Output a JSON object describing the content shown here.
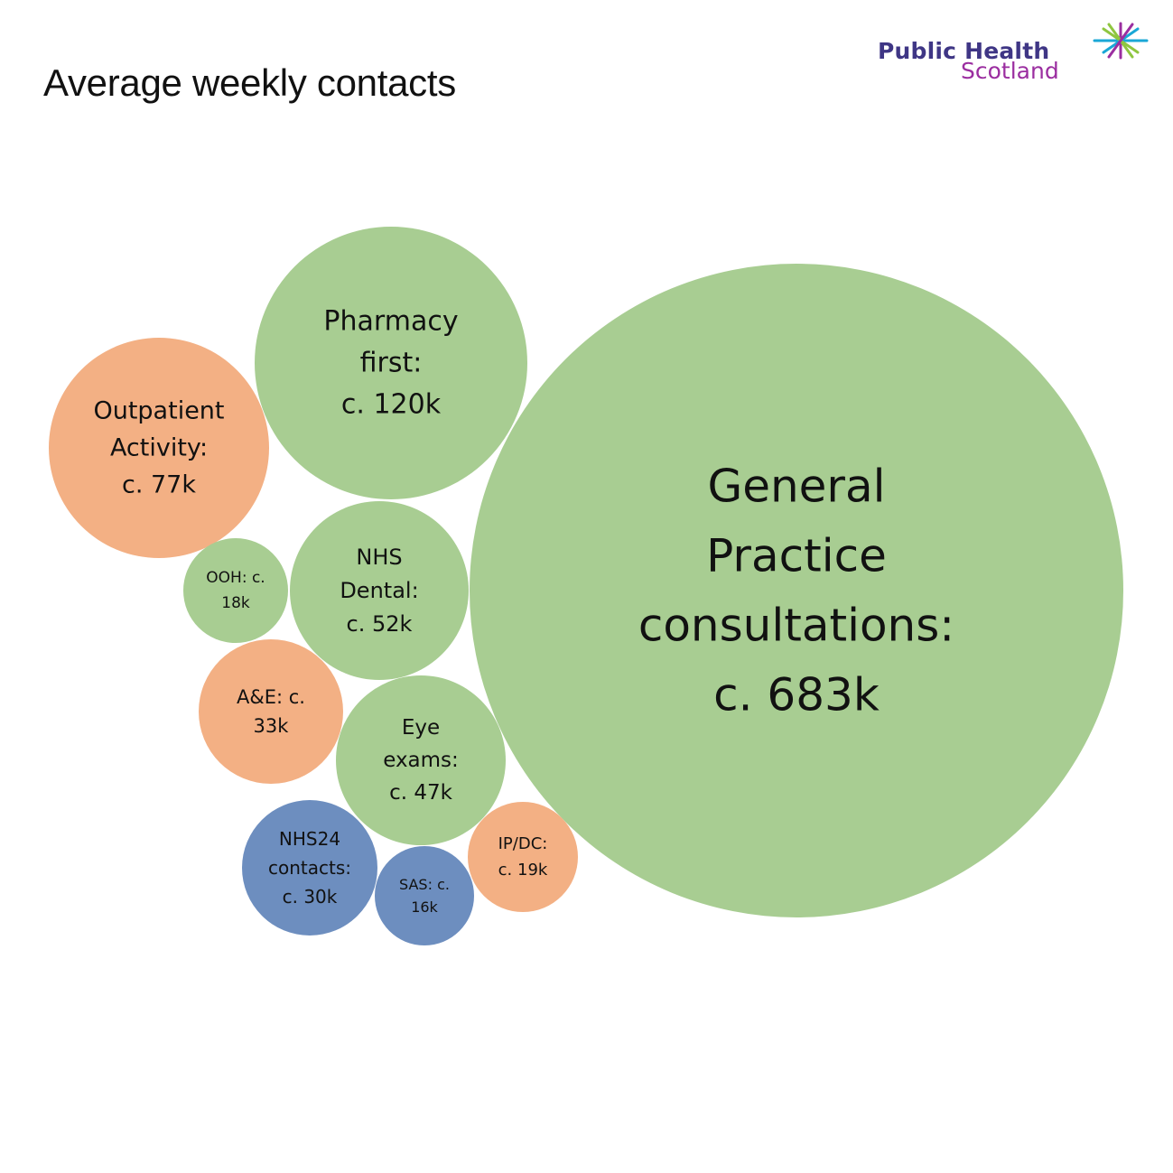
{
  "title": "Average weekly contacts",
  "logo": {
    "line1": "Public Health",
    "line2": "Scotland",
    "colors": {
      "text": "#3f3685",
      "sub": "#9b2ea0",
      "star_a": "#1aa7d6",
      "star_b": "#8fc640",
      "star_c": "#9b2ea0"
    }
  },
  "colors": {
    "green": "#a8cd92",
    "orange": "#f3b084",
    "blue": "#6d8ebf"
  },
  "chart_data": {
    "type": "bubble",
    "title": "Average weekly contacts",
    "bubbles": [
      {
        "name": "General Practice consultations",
        "lines": [
          "General",
          "Practice",
          "consultations:",
          "c. 683k"
        ],
        "value": 683000,
        "group": "green"
      },
      {
        "name": "Pharmacy first",
        "lines": [
          "Pharmacy",
          "first:",
          "c. 120k"
        ],
        "value": 120000,
        "group": "green"
      },
      {
        "name": "Outpatient Activity",
        "lines": [
          "Outpatient",
          "Activity:",
          "c. 77k"
        ],
        "value": 77000,
        "group": "orange"
      },
      {
        "name": "NHS Dental",
        "lines": [
          "NHS",
          "Dental:",
          "c. 52k"
        ],
        "value": 52000,
        "group": "green"
      },
      {
        "name": "Eye exams",
        "lines": [
          "Eye",
          "exams:",
          "c. 47k"
        ],
        "value": 47000,
        "group": "green"
      },
      {
        "name": "A&E",
        "lines": [
          "A&E: c.",
          "33k"
        ],
        "value": 33000,
        "group": "orange"
      },
      {
        "name": "NHS24 contacts",
        "lines": [
          "NHS24",
          "contacts:",
          "c. 30k"
        ],
        "value": 30000,
        "group": "blue"
      },
      {
        "name": "IP/DC",
        "lines": [
          "IP/DC:",
          "c. 19k"
        ],
        "value": 19000,
        "group": "orange"
      },
      {
        "name": "OOH",
        "lines": [
          "OOH: c.",
          "18k"
        ],
        "value": 18000,
        "group": "green"
      },
      {
        "name": "SAS",
        "lines": [
          "SAS: c.",
          "16k"
        ],
        "value": 16000,
        "group": "blue"
      }
    ]
  }
}
